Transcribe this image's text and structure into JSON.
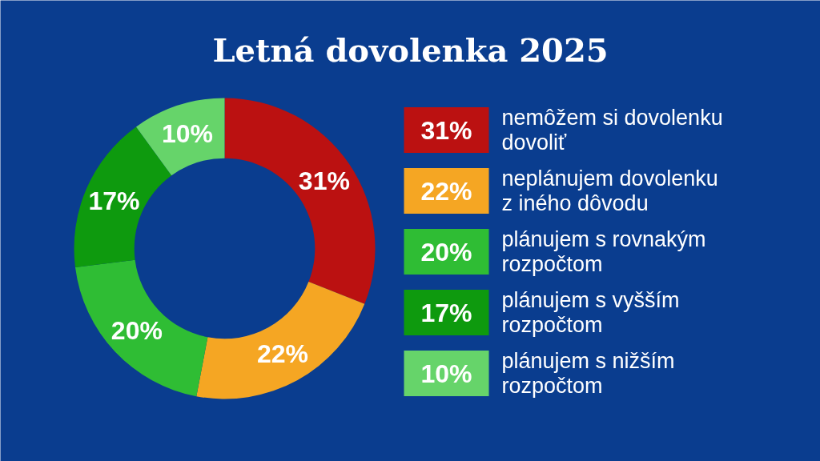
{
  "chart_data": {
    "type": "donut",
    "title": "Letná dovolenka 2025",
    "categories": [
      "nemôžem si dovolenku dovoliť",
      "neplánujem dovolenku z iného dôvodu",
      "plánujem s rovnakým rozpočtom",
      "plánujem s vyšším rozpočtom",
      "plánujem s nižším rozpočtom"
    ],
    "values": [
      31,
      22,
      20,
      17,
      10
    ],
    "colors": [
      "#bb1111",
      "#f5a623",
      "#2fbd34",
      "#0e9a0e",
      "#66d46a"
    ],
    "value_labels": [
      "31%",
      "22%",
      "20%",
      "17%",
      "10%"
    ],
    "legend": "right"
  }
}
